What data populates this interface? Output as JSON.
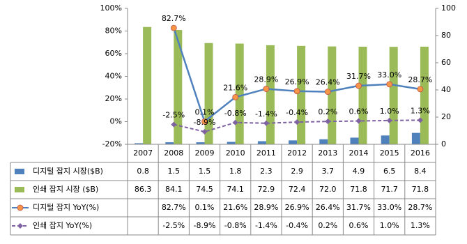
{
  "chart_data": {
    "type": "bar-line-table",
    "categories": [
      "2007",
      "2008",
      "2009",
      "2010",
      "2011",
      "2012",
      "2013",
      "2014",
      "2015",
      "2016"
    ],
    "series": [
      {
        "name": "디지털 잡지 시장($B)",
        "type": "bar",
        "axis": "y2",
        "color": "#4f81bd",
        "values": [
          0.8,
          1.5,
          1.5,
          1.8,
          2.3,
          2.9,
          3.7,
          4.9,
          6.5,
          8.4
        ],
        "value_labels": [
          "0.8",
          "1.5",
          "1.5",
          "1.8",
          "2.3",
          "2.9",
          "3.7",
          "4.9",
          "6.5",
          "8.4"
        ]
      },
      {
        "name": "인쇄 잡지 시장 ($B)",
        "type": "bar",
        "axis": "y2",
        "color": "#9bbb59",
        "values": [
          86.3,
          84.1,
          74.5,
          74.1,
          72.9,
          72.4,
          72.0,
          71.8,
          71.7,
          71.8
        ],
        "value_labels": [
          "86.3",
          "84.1",
          "74.5",
          "74.1",
          "72.9",
          "72.4",
          "72.0",
          "71.8",
          "71.7",
          "71.8"
        ]
      },
      {
        "name": "디지털 잡지 YoY(%)",
        "type": "line",
        "color": "#4f81bd",
        "marker_color": "#f79646",
        "values": [
          null,
          82.7,
          0.1,
          21.6,
          28.9,
          26.9,
          26.4,
          31.7,
          33.0,
          28.7
        ],
        "value_labels": [
          null,
          "82.7%",
          "0.1%",
          "21.6%",
          "28.9%",
          "26.9%",
          "26.4%",
          "31.7%",
          "33.0%",
          "28.7%"
        ]
      },
      {
        "name": "인쇄 잡지 YoY(%)",
        "type": "line",
        "color": "#7e62a1",
        "dashed": true,
        "values": [
          null,
          -2.5,
          -8.9,
          -0.8,
          -1.4,
          -0.4,
          0.2,
          0.6,
          1.0,
          1.3
        ],
        "value_labels": [
          null,
          "-2.5%",
          "-8.9%",
          "-0.8%",
          "-1.4%",
          "-0.4%",
          "0.2%",
          "0.6%",
          "1.0%",
          "1.3%"
        ]
      }
    ],
    "ylim": [
      -20,
      100
    ],
    "yticks": [
      {
        "value": -20,
        "label": "-20%"
      },
      {
        "value": 0,
        "label": "0%"
      },
      {
        "value": 20,
        "label": "20%"
      },
      {
        "value": 40,
        "label": "40%"
      },
      {
        "value": 60,
        "label": "60%"
      },
      {
        "value": 80,
        "label": "80%"
      },
      {
        "value": 100,
        "label": "100%"
      }
    ],
    "y2lim": [
      0,
      100
    ],
    "y2ticks": [
      0,
      20,
      40,
      60,
      80,
      100
    ]
  }
}
